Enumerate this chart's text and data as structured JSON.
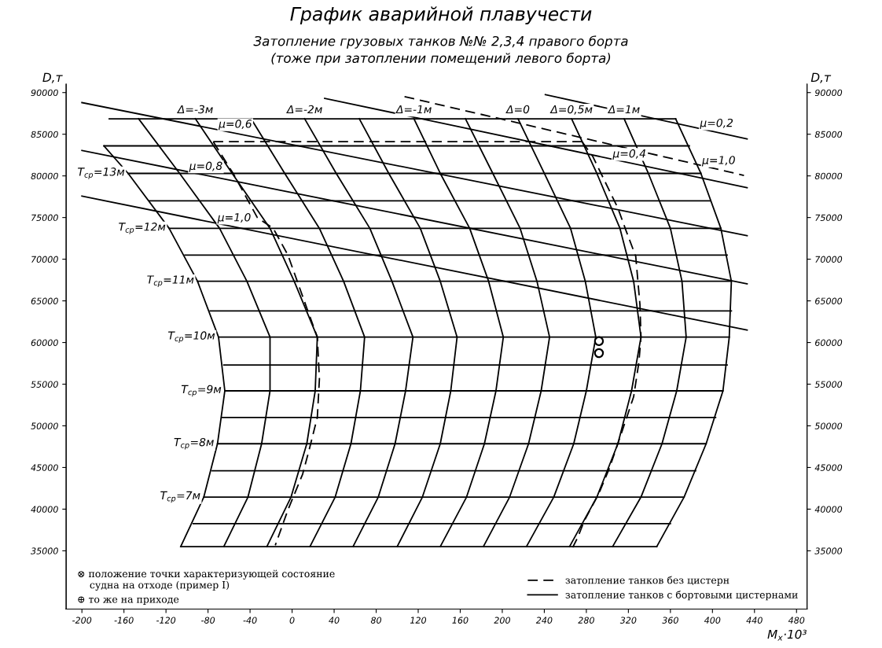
{
  "chart_data": {
    "type": "line",
    "title": "График аварийной плавучести",
    "subtitle": "Затопление грузовых танков №№ 2,3,4 правого борта\n(тоже при затоплении помещений левого борта)",
    "xlabel": "M$_{x}$·10³",
    "ylabel": "D,т",
    "y2label": "D,т",
    "xlim": [
      -215,
      490
    ],
    "ylim": [
      28000,
      91000
    ],
    "y2lim": [
      28000,
      91000
    ],
    "xticks": [
      -200,
      -160,
      -120,
      -80,
      -40,
      0,
      40,
      80,
      120,
      160,
      200,
      240,
      280,
      320,
      360,
      400,
      440,
      480
    ],
    "yticks": [
      35000,
      40000,
      45000,
      50000,
      55000,
      60000,
      65000,
      70000,
      75000,
      80000,
      85000,
      90000
    ],
    "y2ticks": [
      35000,
      40000,
      45000,
      50000,
      55000,
      60000,
      65000,
      70000,
      75000,
      80000,
      85000,
      90000
    ],
    "legend": "bottom right",
    "series": [
      {
        "color": "#000000",
        "x": [
          -179,
          -156,
          -117,
          -90,
          -70,
          -64,
          -71,
          -84,
          -106
        ],
        "values": [
          83600,
          80300,
          73700,
          67350,
          60650,
          54200,
          47850,
          41450,
          35500
        ]
      },
      {
        "color": "#000000",
        "x": [
          -146,
          -107,
          -69,
          -43,
          -21,
          -21,
          -29,
          -42,
          -65
        ],
        "values": [
          86850,
          80300,
          73700,
          67350,
          60650,
          54200,
          47850,
          41450,
          35500
        ]
      },
      {
        "color": "#000000",
        "x": [
          -92,
          -57,
          -21,
          2,
          24,
          22,
          14,
          -1,
          -24
        ],
        "values": [
          86850,
          80300,
          73700,
          67350,
          60650,
          54200,
          47850,
          41450,
          35500
        ]
      },
      {
        "color": "#000000",
        "x": [
          -39,
          -7,
          26,
          49,
          69,
          65,
          56,
          41,
          17
        ],
        "values": [
          86850,
          80300,
          73700,
          67350,
          60650,
          54200,
          47850,
          41450,
          35500
        ]
      },
      {
        "color": "#000000",
        "x": [
          12,
          42,
          74,
          95,
          115,
          108,
          98,
          82,
          58
        ],
        "values": [
          86850,
          80300,
          73700,
          67350,
          60650,
          54200,
          47850,
          41450,
          35500
        ]
      },
      {
        "color": "#000000",
        "x": [
          64,
          92,
          122,
          141,
          157,
          151,
          141,
          124,
          100
        ],
        "values": [
          86850,
          80300,
          73700,
          67350,
          60650,
          54200,
          47850,
          41450,
          35500
        ]
      },
      {
        "color": "#000000",
        "x": [
          116,
          141,
          169,
          187,
          201,
          194,
          183,
          166,
          141
        ],
        "values": [
          86850,
          80300,
          73700,
          67350,
          60650,
          54200,
          47850,
          41450,
          35500
        ]
      },
      {
        "color": "#000000",
        "x": [
          165,
          191,
          217,
          233,
          245,
          237,
          225,
          207,
          182
        ],
        "values": [
          86850,
          80300,
          73700,
          67350,
          60650,
          54200,
          47850,
          41450,
          35500
        ]
      },
      {
        "color": "#000000",
        "x": [
          215,
          240,
          265,
          279,
          289,
          280,
          268,
          249,
          223
        ],
        "values": [
          86850,
          80300,
          73700,
          67350,
          60650,
          54200,
          47850,
          41450,
          35500
        ]
      },
      {
        "color": "#000000",
        "x": [
          266,
          290,
          312,
          325,
          332,
          323,
          310,
          290,
          264
        ],
        "values": [
          86850,
          80300,
          73700,
          67350,
          60650,
          54200,
          47850,
          41450,
          35500
        ]
      },
      {
        "color": "#000000",
        "x": [
          316,
          339,
          360,
          371,
          375,
          366,
          352,
          332,
          305
        ],
        "values": [
          86850,
          80300,
          73700,
          67350,
          60650,
          54200,
          47850,
          41450,
          35500
        ]
      },
      {
        "color": "#000000",
        "x": [
          365,
          389,
          408,
          418,
          416,
          410,
          394,
          373,
          347
        ],
        "values": [
          86850,
          80300,
          73700,
          67350,
          60650,
          54200,
          47850,
          41450,
          35500
        ]
      },
      {
        "color": "#000000",
        "x": [
          -174,
          365
        ],
        "values": [
          86850,
          86850
        ]
      },
      {
        "color": "#000000",
        "x": [
          -179,
          378
        ],
        "values": [
          83600,
          83600
        ]
      },
      {
        "color": "#000000",
        "x": [
          -156,
          389
        ],
        "values": [
          80300,
          80300
        ]
      },
      {
        "color": "#000000",
        "x": [
          -136,
          398
        ],
        "values": [
          77000,
          77000
        ]
      },
      {
        "color": "#000000",
        "x": [
          -117,
          408
        ],
        "values": [
          73700,
          73700
        ]
      },
      {
        "color": "#000000",
        "x": [
          -102,
          414
        ],
        "values": [
          70500,
          70500
        ]
      },
      {
        "color": "#000000",
        "x": [
          -90,
          418
        ],
        "values": [
          67350,
          67350
        ]
      },
      {
        "color": "#000000",
        "x": [
          -78,
          418
        ],
        "values": [
          63800,
          63800
        ]
      },
      {
        "color": "#000000",
        "x": [
          -70,
          416
        ],
        "values": [
          60650,
          60650
        ]
      },
      {
        "color": "#000000",
        "x": [
          -65,
          414
        ],
        "values": [
          57300,
          57300
        ]
      },
      {
        "color": "#000000",
        "x": [
          -64,
          410
        ],
        "values": [
          54200,
          54200
        ]
      },
      {
        "color": "#000000",
        "x": [
          -67,
          403
        ],
        "values": [
          51000,
          51000
        ]
      },
      {
        "color": "#000000",
        "x": [
          -71,
          394
        ],
        "values": [
          47850,
          47850
        ]
      },
      {
        "color": "#000000",
        "x": [
          -76,
          384
        ],
        "values": [
          44600,
          44600
        ]
      },
      {
        "color": "#000000",
        "x": [
          -84,
          373
        ],
        "values": [
          41450,
          41450
        ]
      },
      {
        "color": "#000000",
        "x": [
          -94,
          360
        ],
        "values": [
          38250,
          38250
        ]
      },
      {
        "color": "#000000",
        "x": [
          -106,
          347
        ],
        "values": [
          35500,
          35500
        ]
      },
      {
        "name": "затопление танков без цистерн",
        "color": "#000000",
        "line_style": "dashed",
        "x": [
          -75,
          -56,
          -33,
          -18,
          -4,
          14,
          24,
          26,
          24,
          16,
          10,
          -4,
          -16
        ],
        "values": [
          84100,
          80280,
          74980,
          73710,
          70510,
          64140,
          60660,
          55610,
          51010,
          47000,
          44190,
          39890,
          35660
        ]
      },
      {
        "color": "#000000",
        "line_style": "dashed",
        "x": [
          276,
          286,
          310,
          318,
          327,
          331,
          332,
          330,
          325,
          314,
          302,
          292,
          278,
          272,
          267
        ],
        "values": [
          84100,
          82360,
          76140,
          73350,
          70350,
          64550,
          60660,
          57620,
          53490,
          49350,
          44930,
          41900,
          38590,
          36660,
          35400
        ]
      },
      {
        "color": "#000000",
        "line_style": "dashed",
        "x": [
          -75,
          276
        ],
        "values": [
          84100,
          84100
        ]
      },
      {
        "name": "затопление танков с бортовыми цистернами",
        "color": "#000000",
        "x": [
          -200,
          433
        ],
        "values": [
          88800,
          72830
        ]
      },
      {
        "color": "#000000",
        "x": [
          -200,
          433
        ],
        "values": [
          83050,
          67040
        ]
      },
      {
        "color": "#000000",
        "x": [
          -200,
          433
        ],
        "values": [
          77570,
          61490
        ]
      },
      {
        "color": "#000000",
        "x": [
          31,
          433
        ],
        "values": [
          89310,
          78580
        ]
      },
      {
        "color": "#000000",
        "x": [
          241,
          433
        ],
        "values": [
          89750,
          84430
        ]
      },
      {
        "color": "#000000",
        "line_style": "dashed",
        "x": [
          107,
          430
        ],
        "values": [
          89520,
          80060
        ]
      },
      {
        "type": "scatter",
        "marker": "circle",
        "color": "#000000",
        "x": [
          292,
          292
        ],
        "values": [
          60170,
          58730
        ]
      }
    ],
    "annotations": [
      {
        "text": "Δ=-3м",
        "x": -92,
        "y": 86850
      },
      {
        "text": "Δ=-2м",
        "x": 12,
        "y": 86850
      },
      {
        "text": "Δ=-1м",
        "x": 116,
        "y": 86850
      },
      {
        "text": "Δ=0",
        "x": 215,
        "y": 86850
      },
      {
        "text": "Δ=0,5м",
        "x": 266,
        "y": 86850
      },
      {
        "text": "Δ=1м",
        "x": 316,
        "y": 86850
      },
      {
        "text": "T$_{ср}$=13м",
        "x": -156,
        "y": 80300
      },
      {
        "text": "T$_{ср}$=12м",
        "x": -117,
        "y": 73700
      },
      {
        "text": "T$_{ср}$=11м",
        "x": -90,
        "y": 67350
      },
      {
        "text": "T$_{ср}$=10м",
        "x": -70,
        "y": 60650
      },
      {
        "text": "T$_{ср}$=9м",
        "x": -64,
        "y": 54200
      },
      {
        "text": "T$_{ср}$=8м",
        "x": -71,
        "y": 47850
      },
      {
        "text": "T$_{ср}$=7м",
        "x": -84,
        "y": 41450
      },
      {
        "text": "μ=0,6",
        "x": -54,
        "y": 85120
      },
      {
        "text": "μ=0,8",
        "x": -82,
        "y": 80070
      },
      {
        "text": "μ=1,0",
        "x": -55,
        "y": 73890
      },
      {
        "text": "μ=0,4",
        "x": 321,
        "y": 81550
      },
      {
        "text": "μ=0,2",
        "x": 404,
        "y": 85230
      },
      {
        "text": "μ=1,0",
        "x": 406,
        "y": 80760
      },
      "⊗ положение точки характеризующей состояние\n    судна на отходе (пример I)",
      "⊕ то же на приходе"
    ]
  }
}
